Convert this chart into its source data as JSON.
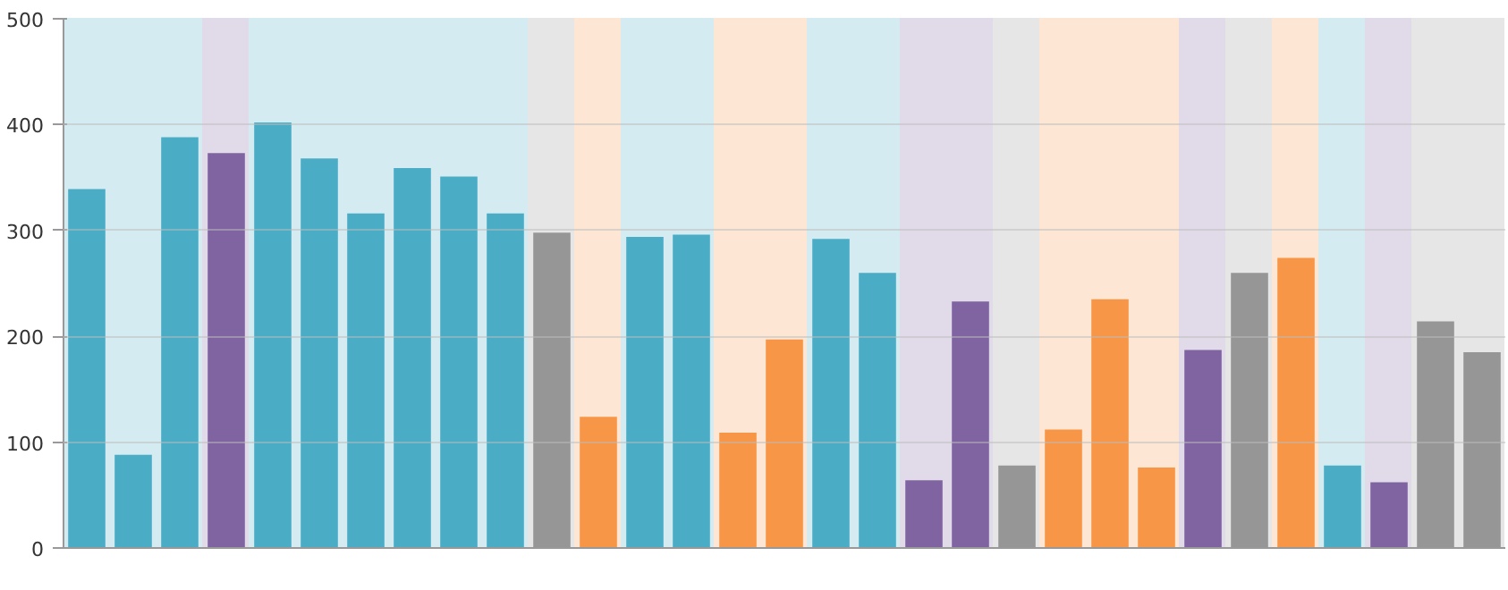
{
  "chart_data": {
    "type": "bar",
    "categories": [
      null,
      null,
      null,
      null,
      null,
      null,
      null,
      null,
      null,
      null,
      null,
      null,
      null,
      null,
      null,
      null,
      null,
      null,
      null,
      null,
      null,
      null,
      null,
      null,
      null,
      null,
      null,
      null,
      null,
      null,
      null
    ],
    "values": [
      339,
      88,
      388,
      373,
      402,
      368,
      316,
      359,
      351,
      316,
      298,
      124,
      294,
      296,
      109,
      197,
      292,
      260,
      64,
      233,
      78,
      112,
      235,
      76,
      187,
      260,
      274,
      78,
      62,
      214,
      185
    ],
    "colors": [
      "#4bacc6",
      "#4bacc6",
      "#4bacc6",
      "#8064a2",
      "#4bacc6",
      "#4bacc6",
      "#4bacc6",
      "#4bacc6",
      "#4bacc6",
      "#4bacc6",
      "#969696",
      "#f79646",
      "#4bacc6",
      "#4bacc6",
      "#f79646",
      "#f79646",
      "#4bacc6",
      "#4bacc6",
      "#8064a2",
      "#8064a2",
      "#969696",
      "#f79646",
      "#f79646",
      "#f79646",
      "#8064a2",
      "#969696",
      "#f79646",
      "#4bacc6",
      "#8064a2",
      "#969696",
      "#969696"
    ],
    "ylim": [
      0,
      500
    ],
    "yticks": [
      0,
      100,
      200,
      300,
      400,
      500
    ],
    "grid": "y",
    "tick_labels": "y"
  }
}
